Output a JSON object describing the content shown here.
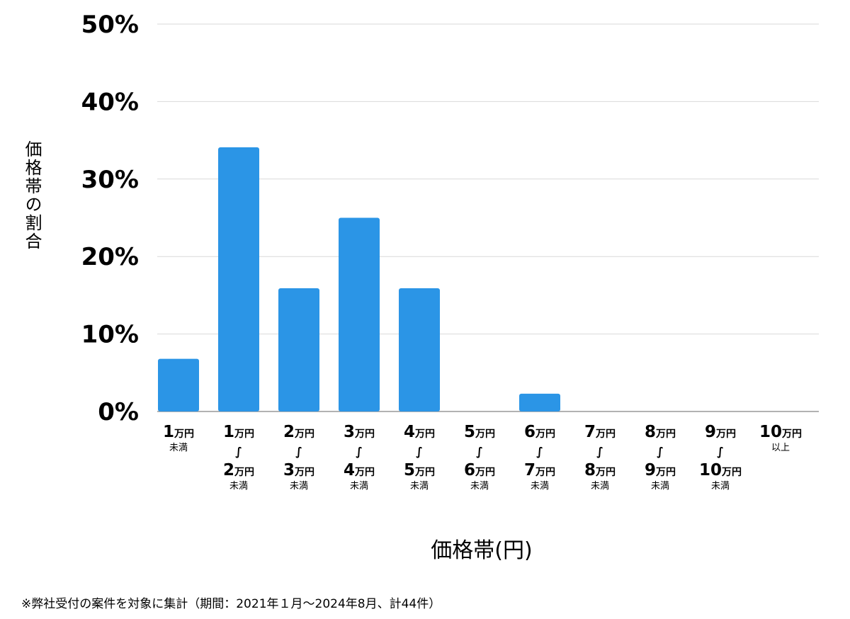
{
  "chart_data": {
    "type": "bar",
    "ylabel": "価格帯の割合",
    "xlabel": "価格帯(円)",
    "footnote": "※弊社受付の案件を対象に集計（期間：2021年１月〜2024年8月、計44件）",
    "ylim": [
      0,
      50
    ],
    "yticks": [
      "0%",
      "10%",
      "20%",
      "30%",
      "40%",
      "50%"
    ],
    "ytick_values": [
      0,
      10,
      20,
      30,
      40,
      50
    ],
    "grid": true,
    "bar_color": "#2B95E6",
    "grid_color": "#d9d9d9",
    "axis_color": "#999999",
    "unit_word": "万円",
    "tilde": "∫",
    "categories": [
      {
        "from": "1",
        "from_note": "未満"
      },
      {
        "from": "1",
        "to": "2",
        "to_note": "未満"
      },
      {
        "from": "2",
        "to": "3",
        "to_note": "未満"
      },
      {
        "from": "3",
        "to": "4",
        "to_note": "未満"
      },
      {
        "from": "4",
        "to": "5",
        "to_note": "未満"
      },
      {
        "from": "5",
        "to": "6",
        "to_note": "未満"
      },
      {
        "from": "6",
        "to": "7",
        "to_note": "未満"
      },
      {
        "from": "7",
        "to": "8",
        "to_note": "未満"
      },
      {
        "from": "8",
        "to": "9",
        "to_note": "未満"
      },
      {
        "from": "9",
        "to": "10",
        "to_note": "未満"
      },
      {
        "from": "10",
        "from_note": "以上"
      }
    ],
    "values": [
      6.8,
      34.1,
      15.9,
      25.0,
      15.9,
      0,
      2.3,
      0,
      0,
      0,
      0
    ]
  }
}
